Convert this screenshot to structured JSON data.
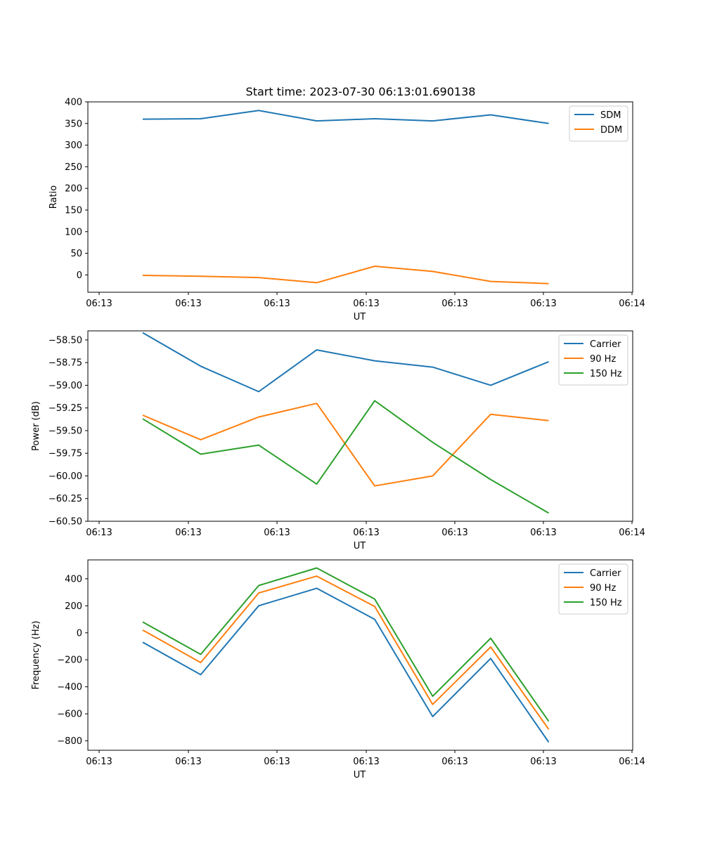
{
  "title": "Start time: 2023-07-30 06:13:01.690138",
  "chart_data": [
    {
      "type": "line",
      "xlabel": "UT",
      "ylabel": "Ratio",
      "x_tick_labels": [
        "06:13",
        "06:13",
        "06:13",
        "06:13",
        "06:13",
        "06:13",
        "06:14"
      ],
      "y_ticks": [
        0,
        50,
        100,
        150,
        200,
        250,
        300,
        350,
        400
      ],
      "ylim": [
        -40,
        400
      ],
      "legend": "top-right",
      "series": [
        {
          "name": "SDM",
          "color": "#1f77b4",
          "values": [
            360,
            361,
            380,
            356,
            361,
            356,
            370,
            350
          ]
        },
        {
          "name": "DDM",
          "color": "#ff7f0e",
          "values": [
            -1,
            -3,
            -6,
            -18,
            20,
            8,
            -15,
            -20
          ]
        }
      ]
    },
    {
      "type": "line",
      "xlabel": "UT",
      "ylabel": "Power (dB)",
      "x_tick_labels": [
        "06:13",
        "06:13",
        "06:13",
        "06:13",
        "06:13",
        "06:13",
        "06:14"
      ],
      "y_ticks": [
        -58.5,
        -58.75,
        -59.0,
        -59.25,
        -59.5,
        -59.75,
        -60.0,
        -60.25,
        -60.5
      ],
      "y_tick_labels": [
        "−58.50",
        "−58.75",
        "−59.00",
        "−59.25",
        "−59.50",
        "−59.75",
        "−60.00",
        "−60.25",
        "−60.50"
      ],
      "ylim": [
        -60.5,
        -58.4
      ],
      "legend": "top-right",
      "series": [
        {
          "name": "Carrier",
          "color": "#1f77b4",
          "values": [
            -58.42,
            -58.79,
            -59.07,
            -58.61,
            -58.73,
            -58.8,
            -59.0,
            -58.74
          ]
        },
        {
          "name": "90 Hz",
          "color": "#ff7f0e",
          "values": [
            -59.33,
            -59.6,
            -59.35,
            -59.2,
            -60.11,
            -60.0,
            -59.32,
            -59.39
          ]
        },
        {
          "name": "150 Hz",
          "color": "#2ca02c",
          "values": [
            -59.37,
            -59.76,
            -59.66,
            -60.09,
            -59.17,
            -59.63,
            -60.04,
            -60.41
          ]
        }
      ]
    },
    {
      "type": "line",
      "xlabel": "UT",
      "ylabel": "Frequency (Hz)",
      "x_tick_labels": [
        "06:13",
        "06:13",
        "06:13",
        "06:13",
        "06:13",
        "06:13",
        "06:14"
      ],
      "y_ticks": [
        400,
        200,
        0,
        -200,
        -400,
        -600,
        -800
      ],
      "y_tick_labels": [
        "400",
        "200",
        "0",
        "−200",
        "−400",
        "−600",
        "−800"
      ],
      "ylim": [
        -870,
        540
      ],
      "legend": "top-right",
      "series": [
        {
          "name": "Carrier",
          "color": "#1f77b4",
          "values": [
            -70,
            -310,
            200,
            330,
            100,
            -620,
            -190,
            -810
          ]
        },
        {
          "name": "90 Hz",
          "color": "#ff7f0e",
          "values": [
            20,
            -220,
            295,
            420,
            195,
            -530,
            -105,
            -715
          ]
        },
        {
          "name": "150 Hz",
          "color": "#2ca02c",
          "values": [
            80,
            -160,
            350,
            480,
            250,
            -470,
            -40,
            -655
          ]
        }
      ]
    }
  ]
}
